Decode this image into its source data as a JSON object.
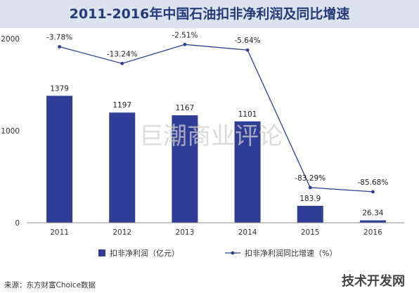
{
  "chart_data": {
    "type": "bar",
    "title": "2011-2016年中国石油扣非净利润及同比增速",
    "categories": [
      "2011",
      "2012",
      "2013",
      "2014",
      "2015",
      "2016"
    ],
    "series": [
      {
        "name": "扣非净利润（亿元）",
        "type": "bar",
        "values": [
          1379,
          1197,
          1167,
          1101,
          183.9,
          26.34
        ],
        "labels": [
          "1379",
          "1197",
          "1167",
          "1101",
          "183.9",
          "26.34"
        ],
        "color": "#2e3d96"
      },
      {
        "name": "扣非净利润同比增速（%）",
        "type": "line",
        "values": [
          -3.78,
          -13.24,
          -2.51,
          -5.64,
          -83.29,
          -85.68
        ],
        "labels": [
          "-3.78%",
          "-13.24%",
          "-2.51%",
          "-5.64%",
          "-83.29%",
          "-85.68%"
        ],
        "color": "#2e3d96"
      }
    ],
    "y_ticks": [
      "0",
      "1000",
      "2000"
    ],
    "ylim": [
      0,
      2000
    ],
    "line_ylim": [
      -100,
      0
    ],
    "grid": false,
    "legend_position": "bottom"
  },
  "watermark": "巨潮商业评论",
  "source": "来源：东方财富Choice数据",
  "brand": "技术开发网"
}
